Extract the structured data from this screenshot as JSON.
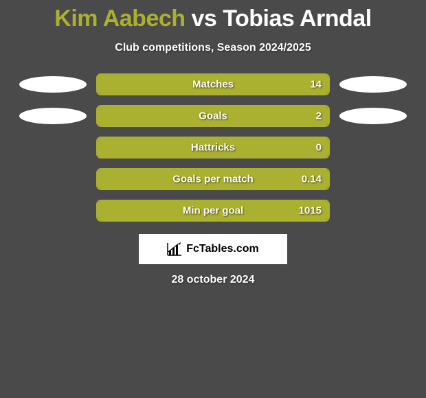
{
  "title": {
    "player1": "Kim Aabech",
    "vs": "vs",
    "player2": "Tobias Arndal",
    "player1_color": "#aab02f",
    "vs_color": "#ffffff",
    "player2_color": "#ffffff"
  },
  "subtitle": "Club competitions, Season 2024/2025",
  "accent_color": "#aab02f",
  "ellipse_color": "#ffffff",
  "background_color": "#4a4a4a",
  "stats": [
    {
      "label": "Matches",
      "value": "14",
      "fill_pct": 100,
      "show_ellipses": true
    },
    {
      "label": "Goals",
      "value": "2",
      "fill_pct": 100,
      "show_ellipses": true
    },
    {
      "label": "Hattricks",
      "value": "0",
      "fill_pct": 100,
      "show_ellipses": false
    },
    {
      "label": "Goals per match",
      "value": "0.14",
      "fill_pct": 100,
      "show_ellipses": false
    },
    {
      "label": "Min per goal",
      "value": "1015",
      "fill_pct": 100,
      "show_ellipses": false
    }
  ],
  "footer_brand": "FcTables.com",
  "date": "28 october 2024"
}
